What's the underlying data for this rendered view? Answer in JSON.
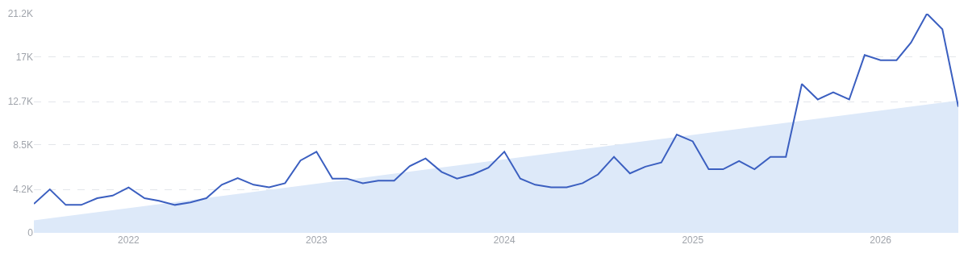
{
  "chart_data": {
    "type": "line",
    "xlim": [
      "2021-07",
      "2026-06"
    ],
    "xticks": [
      "2022",
      "2023",
      "2024",
      "2025",
      "2026"
    ],
    "ylim": [
      0,
      21200
    ],
    "yticks": [
      0,
      {
        "value": 4200,
        "label": "4.2K"
      },
      {
        "value": 8500,
        "label": "8.5K"
      },
      {
        "value": 12700,
        "label": "12.7K"
      },
      {
        "value": 17000,
        "label": "17K"
      },
      {
        "value": 21200,
        "label": "21.2K"
      }
    ],
    "grid": "y",
    "marker": "none",
    "line_style": "solid",
    "x": [
      "2021-07",
      "2021-08",
      "2021-09",
      "2021-10",
      "2021-11",
      "2021-12",
      "2022-01",
      "2022-02",
      "2022-03",
      "2022-04",
      "2022-05",
      "2022-06",
      "2022-07",
      "2022-08",
      "2022-09",
      "2022-10",
      "2022-11",
      "2022-12",
      "2023-01",
      "2023-02",
      "2023-03",
      "2023-04",
      "2023-05",
      "2023-06",
      "2023-07",
      "2023-08",
      "2023-09",
      "2023-10",
      "2023-11",
      "2023-12",
      "2024-01",
      "2024-02",
      "2024-03",
      "2024-04",
      "2024-05",
      "2024-06",
      "2024-07",
      "2024-08",
      "2024-09",
      "2024-10",
      "2024-11",
      "2024-12",
      "2025-01",
      "2025-02",
      "2025-03",
      "2025-04",
      "2025-05",
      "2025-06",
      "2025-07",
      "2025-08",
      "2025-09",
      "2025-10",
      "2025-11",
      "2025-12",
      "2026-01",
      "2026-02",
      "2026-03",
      "2026-04",
      "2026-05",
      "2026-06"
    ],
    "series": [
      {
        "type": "area",
        "color": "#dde9f9",
        "x": [
          "2021-07",
          "2026-06"
        ],
        "values": [
          1200,
          12800
        ]
      },
      {
        "color": "#3b5fc0",
        "values": [
          2800,
          4200,
          2700,
          2700,
          3350,
          3600,
          4400,
          3350,
          3100,
          2700,
          2950,
          3350,
          4650,
          5300,
          4650,
          4400,
          4800,
          7000,
          7850,
          5250,
          5250,
          4800,
          5050,
          5050,
          6450,
          7200,
          5900,
          5250,
          5650,
          6300,
          7850,
          5250,
          4650,
          4400,
          4400,
          4800,
          5650,
          7350,
          5750,
          6400,
          6800,
          9500,
          8850,
          6150,
          6150,
          6950,
          6150,
          7350,
          7350,
          14400,
          12900,
          13600,
          12900,
          17200,
          16700,
          16700,
          18400,
          21200,
          19700,
          12200
        ]
      }
    ]
  }
}
